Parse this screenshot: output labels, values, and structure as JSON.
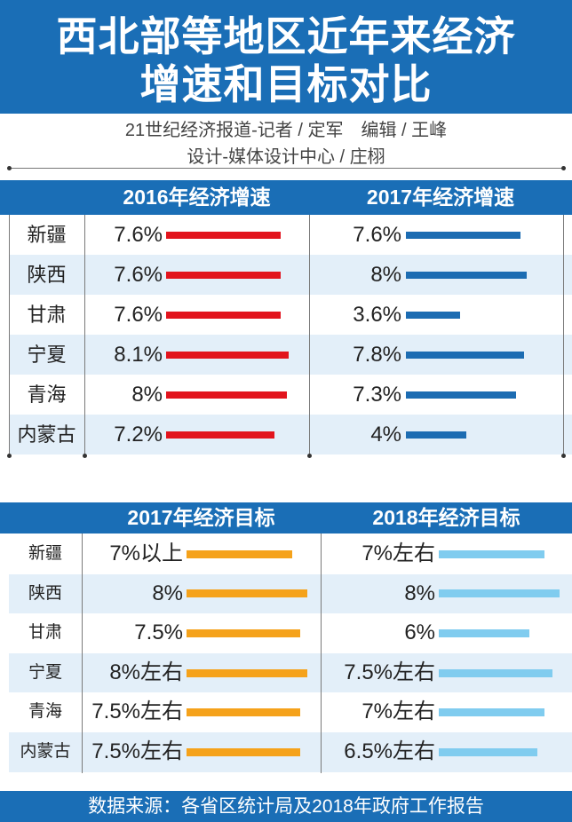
{
  "theme": {
    "brand": "#1a6eb6",
    "row_alt": "#e3eff9"
  },
  "title": {
    "line1": "西北部等地区近年来经济",
    "line2": "增速和目标对比"
  },
  "credits": {
    "line1": "21世纪经济报道-记者 / 定军　编辑 / 王峰",
    "line2": "设计-媒体设计中心 / 庄栩"
  },
  "chart_data": [
    {
      "type": "bar",
      "categories": [
        "新疆",
        "陕西",
        "甘肃",
        "宁夏",
        "青海",
        "内蒙古"
      ],
      "series": [
        {
          "name": "2016年经济增速",
          "values": [
            7.6,
            7.6,
            7.6,
            8.1,
            8,
            7.2
          ],
          "labels": [
            "7.6%",
            "7.6%",
            "7.6%",
            "8.1%",
            "8%",
            "7.2%"
          ],
          "color": "#e2141d"
        },
        {
          "name": "2017年经济增速",
          "values": [
            7.6,
            8,
            3.6,
            7.8,
            7.3,
            4
          ],
          "labels": [
            "7.6%",
            "8%",
            "3.6%",
            "7.8%",
            "7.3%",
            "4%"
          ],
          "color": "#1c6cb2"
        }
      ]
    },
    {
      "type": "bar",
      "categories": [
        "新疆",
        "陕西",
        "甘肃",
        "宁夏",
        "青海",
        "内蒙古"
      ],
      "series": [
        {
          "name": "2017年经济目标",
          "values": [
            7,
            8,
            7.5,
            8,
            7.5,
            7.5
          ],
          "labels": [
            "7%以上",
            "8%",
            "7.5%",
            "8%左右",
            "7.5%左右",
            "7.5%左右"
          ],
          "color": "#f5a21b"
        },
        {
          "name": "2018年经济目标",
          "values": [
            7,
            8,
            6,
            7.5,
            7,
            6.5
          ],
          "labels": [
            "7%左右",
            "8%",
            "6%",
            "7.5%左右",
            "7%左右",
            "6.5%左右"
          ],
          "color": "#80ccef"
        }
      ]
    }
  ],
  "footer": {
    "source": "数据来源：各省区统计局及2018年政府工作报告"
  }
}
